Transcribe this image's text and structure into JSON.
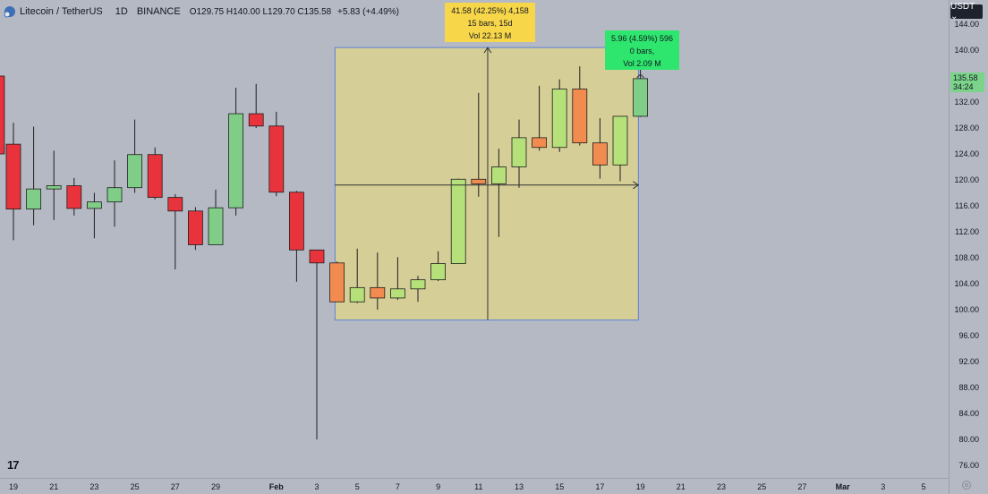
{
  "header": {
    "symbol": "Litecoin / TetherUS",
    "interval": "1D",
    "exchange": "BINANCE",
    "open_label": "O",
    "open": "129.75",
    "high_label": "H",
    "high": "140.00",
    "low_label": "L",
    "low": "129.70",
    "close_label": "C",
    "close": "135.58",
    "change": "+5.83 (+4.49%)"
  },
  "currency_button": "USDT ⌄",
  "price_tag": {
    "price": "135.58",
    "countdown": "34:24"
  },
  "range_label": {
    "line1": "41.58 (42.25%) 4,158",
    "line2": "15 bars, 15d",
    "line3": "Vol 22.13 M"
  },
  "measure_label": {
    "line1": "5.96 (4.59%) 596",
    "line2": "0 bars,",
    "line3": "Vol 2.09 M"
  },
  "logo_text": "17",
  "colors": {
    "bull": "#7fcd86",
    "bear": "#e8333c",
    "bull_box": "#b6e07a",
    "bear_box": "#f28b50",
    "box_fill": "#e8dc7a",
    "box_border": "#5c83d6"
  },
  "chart_data": {
    "type": "candlestick",
    "y_axis_ticks": [
      76,
      80,
      84,
      88,
      92,
      96,
      100,
      104,
      108,
      112,
      116,
      120,
      124,
      128,
      132,
      136,
      140,
      144
    ],
    "y_axis_tick_labels": [
      "76.00",
      "80.00",
      "84.00",
      "88.00",
      "92.00",
      "96.00",
      "100.00",
      "104.00",
      "108.00",
      "112.00",
      "116.00",
      "120.00",
      "124.00",
      "128.00",
      "132.00",
      "136.00",
      "140.00",
      "144.00"
    ],
    "x_axis_ticks": [
      {
        "label": "19",
        "day": 0
      },
      {
        "label": "21",
        "day": 2
      },
      {
        "label": "23",
        "day": 4
      },
      {
        "label": "25",
        "day": 6
      },
      {
        "label": "27",
        "day": 8
      },
      {
        "label": "29",
        "day": 10
      },
      {
        "label": "Feb",
        "day": 13
      },
      {
        "label": "3",
        "day": 15
      },
      {
        "label": "5",
        "day": 17
      },
      {
        "label": "7",
        "day": 19
      },
      {
        "label": "9",
        "day": 21
      },
      {
        "label": "11",
        "day": 23
      },
      {
        "label": "13",
        "day": 25
      },
      {
        "label": "15",
        "day": 27
      },
      {
        "label": "17",
        "day": 29
      },
      {
        "label": "19",
        "day": 31
      },
      {
        "label": "21",
        "day": 33
      },
      {
        "label": "23",
        "day": 35
      },
      {
        "label": "25",
        "day": 37
      },
      {
        "label": "27",
        "day": 39
      },
      {
        "label": "Mar",
        "day": 41
      },
      {
        "label": "3",
        "day": 43
      },
      {
        "label": "5",
        "day": 45
      }
    ],
    "candles": [
      {
        "day": -0.8,
        "o": 136.0,
        "h": 138.0,
        "l": 118.0,
        "c": 124.0
      },
      {
        "day": 0,
        "o": 125.5,
        "h": 128.8,
        "l": 110.7,
        "c": 115.5
      },
      {
        "day": 1,
        "o": 115.5,
        "h": 128.2,
        "l": 113.0,
        "c": 118.6
      },
      {
        "day": 2,
        "o": 118.6,
        "h": 124.5,
        "l": 113.8,
        "c": 119.1
      },
      {
        "day": 3,
        "o": 119.1,
        "h": 120.3,
        "l": 114.5,
        "c": 115.6
      },
      {
        "day": 4,
        "o": 115.6,
        "h": 118.0,
        "l": 111.0,
        "c": 116.6
      },
      {
        "day": 5,
        "o": 116.6,
        "h": 123.0,
        "l": 112.8,
        "c": 118.8
      },
      {
        "day": 6,
        "o": 118.8,
        "h": 129.3,
        "l": 118.0,
        "c": 123.9
      },
      {
        "day": 7,
        "o": 123.9,
        "h": 125.0,
        "l": 117.0,
        "c": 117.3
      },
      {
        "day": 8,
        "o": 117.3,
        "h": 117.8,
        "l": 106.2,
        "c": 115.2
      },
      {
        "day": 9,
        "o": 115.2,
        "h": 115.8,
        "l": 109.2,
        "c": 110.0
      },
      {
        "day": 10,
        "o": 110.0,
        "h": 118.5,
        "l": 110.0,
        "c": 115.7
      },
      {
        "day": 11,
        "o": 115.7,
        "h": 134.2,
        "l": 114.5,
        "c": 130.2
      },
      {
        "day": 12,
        "o": 130.2,
        "h": 134.8,
        "l": 128.0,
        "c": 128.3
      },
      {
        "day": 13,
        "o": 128.3,
        "h": 130.5,
        "l": 117.5,
        "c": 118.1
      },
      {
        "day": 14,
        "o": 118.1,
        "h": 118.3,
        "l": 104.3,
        "c": 109.2
      },
      {
        "day": 15,
        "o": 109.2,
        "h": 109.2,
        "l": 80.0,
        "c": 107.2
      },
      {
        "day": 16,
        "o": 107.2,
        "h": 107.4,
        "l": 101.2,
        "c": 101.2
      },
      {
        "day": 17,
        "o": 101.2,
        "h": 109.4,
        "l": 101.0,
        "c": 103.4
      },
      {
        "day": 18,
        "o": 103.4,
        "h": 108.8,
        "l": 100.0,
        "c": 101.8
      },
      {
        "day": 19,
        "o": 101.8,
        "h": 108.1,
        "l": 101.5,
        "c": 103.2
      },
      {
        "day": 20,
        "o": 103.2,
        "h": 105.2,
        "l": 101.2,
        "c": 104.6
      },
      {
        "day": 21,
        "o": 104.6,
        "h": 109.0,
        "l": 104.4,
        "c": 107.1
      },
      {
        "day": 22,
        "o": 107.1,
        "h": 120.2,
        "l": 107.1,
        "c": 120.1
      },
      {
        "day": 23,
        "o": 120.1,
        "h": 133.4,
        "l": 117.4,
        "c": 119.4
      },
      {
        "day": 24,
        "o": 119.4,
        "h": 124.8,
        "l": 111.2,
        "c": 122.0
      },
      {
        "day": 25,
        "o": 122.0,
        "h": 129.3,
        "l": 118.8,
        "c": 126.5
      },
      {
        "day": 26,
        "o": 126.5,
        "h": 134.5,
        "l": 124.5,
        "c": 125.0
      },
      {
        "day": 27,
        "o": 125.0,
        "h": 135.5,
        "l": 124.3,
        "c": 134.0
      },
      {
        "day": 28,
        "o": 134.0,
        "h": 137.5,
        "l": 125.3,
        "c": 125.7
      },
      {
        "day": 29,
        "o": 125.7,
        "h": 129.5,
        "l": 120.2,
        "c": 122.3
      },
      {
        "day": 30,
        "o": 122.3,
        "h": 129.8,
        "l": 119.8,
        "c": 129.8
      },
      {
        "day": 31,
        "o": 129.8,
        "h": 140.0,
        "l": 129.7,
        "c": 135.6
      }
    ],
    "range_box": {
      "day_start": 15.9,
      "day_end": 30.9,
      "low": 98.4,
      "high": 140.4,
      "cross_day": 23.45,
      "cross_price": 119.2
    },
    "measure_point": {
      "day": 31,
      "price": 135.6
    }
  }
}
